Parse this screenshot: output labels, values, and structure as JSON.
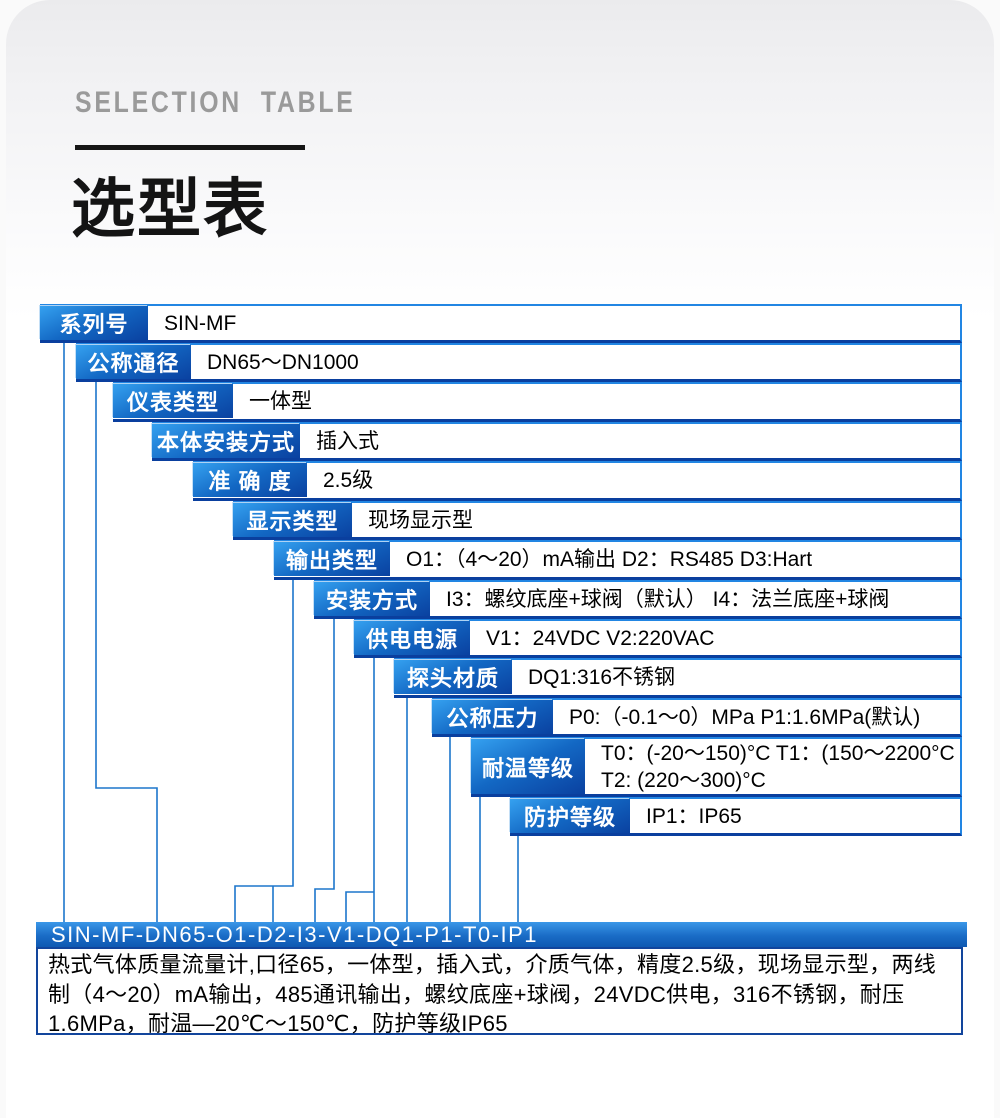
{
  "page": {
    "section_label": "SELECTION TABLE",
    "title": "选型表"
  },
  "table": {
    "rows": [
      {
        "label": "系列号",
        "value": "SIN-MF"
      },
      {
        "label": "公称通径",
        "value": "DN65～DN1000"
      },
      {
        "label": "仪表类型",
        "value": "一体型"
      },
      {
        "label": "本体安装方式",
        "value": "插入式"
      },
      {
        "label": "准 确 度",
        "value": "2.5级"
      },
      {
        "label": "显示类型",
        "value": "现场显示型"
      },
      {
        "label": "输出类型",
        "value": "O1：（4～20）mA输出 D2：RS485 D3:Hart"
      },
      {
        "label": "安装方式",
        "value": "I3：螺纹底座+球阀（默认） I4：法兰底座+球阀"
      },
      {
        "label": "供电电源",
        "value": "V1：24VDC V2:220VAC"
      },
      {
        "label": "探头材质",
        "value": "DQ1:316不锈钢"
      },
      {
        "label": "公称压力",
        "value": "P0:（-0.1～0）MPa P1:1.6MPa(默认)"
      },
      {
        "label": "耐温等级",
        "value": "T0：(-20～150)°C T1：(150～2200°C\nT2: (220～300)°C"
      },
      {
        "label": "防护等级",
        "value": "IP1：IP65"
      }
    ]
  },
  "result": {
    "code": "SIN-MF-DN65-O1-D2-I3-V1-DQ1-P1-T0-IP1",
    "description": "热式气体质量流量计,口径65，一体型，插入式，介质气体，精度2.5级，现场显示型，两线制（4～20）mA输出，485通讯输出，螺纹底座+球阀，24VDC供电，316不锈钢，耐压1.6MPa，耐温—20℃～150℃，防护等级IP65"
  },
  "colors": {
    "label_blue_light": "#35a1f0",
    "label_blue_dark": "#0a41a0",
    "row_border_light": "#2286e3",
    "row_border_dark": "#0a3f9e",
    "connector_blue": "#1d76cc",
    "section_label_gray": "#9a9a9a"
  },
  "connectors": [
    "M64 338 V922",
    "M96 378 V788 H157 V922",
    "M293 576 V886 H235 V922",
    "M273 886 V922",
    "M334 616 V889 H315 V922",
    "M374 655 V922",
    "M374 892 H346 V922",
    "M407 694 V922",
    "M450 733 V922",
    "M480 796 V922",
    "M518 833 V922"
  ]
}
